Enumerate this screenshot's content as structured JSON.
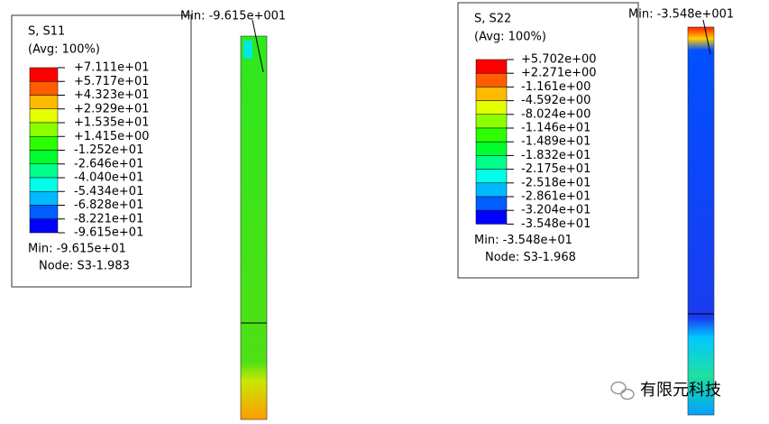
{
  "panels": [
    {
      "legend": {
        "title": "S, S11",
        "avg": "(Avg: 100%)",
        "levels": [
          "+7.111e+01",
          "+5.717e+01",
          "+4.323e+01",
          "+2.929e+01",
          "+1.535e+01",
          "+1.415e+00",
          "-1.252e+01",
          "-2.646e+01",
          "-4.040e+01",
          "-5.434e+01",
          "-6.828e+01",
          "-8.221e+01",
          "-9.615e+01"
        ],
        "min": "Min: -9.615e+01",
        "node": "Node: S3-1.983"
      },
      "probe_label": "Min: -9.615e+001"
    },
    {
      "legend": {
        "title": "S, S22",
        "avg": "(Avg: 100%)",
        "levels": [
          "+5.702e+00",
          "+2.271e+00",
          "-1.161e+00",
          "-4.592e+00",
          "-8.024e+00",
          "-1.146e+01",
          "-1.489e+01",
          "-1.832e+01",
          "-2.175e+01",
          "-2.518e+01",
          "-2.861e+01",
          "-3.204e+01",
          "-3.548e+01"
        ],
        "min": "Min: -3.548e+01",
        "node": "Node: S3-1.968"
      },
      "probe_label": "Min: -3.548e+001"
    }
  ],
  "watermark": "有限元科技"
}
